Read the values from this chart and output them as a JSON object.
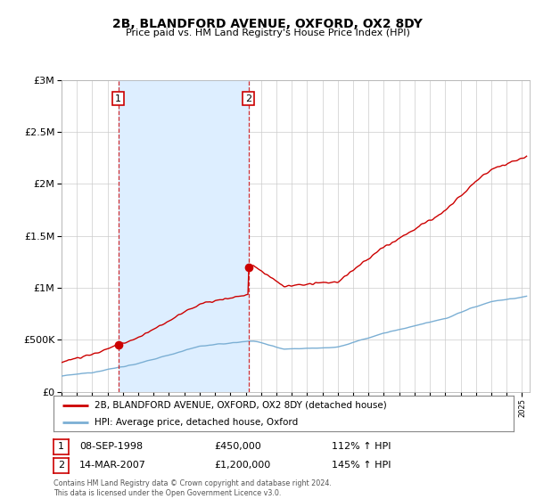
{
  "title": "2B, BLANDFORD AVENUE, OXFORD, OX2 8DY",
  "subtitle": "Price paid vs. HM Land Registry's House Price Index (HPI)",
  "legend_line1": "2B, BLANDFORD AVENUE, OXFORD, OX2 8DY (detached house)",
  "legend_line2": "HPI: Average price, detached house, Oxford",
  "annotation1_label": "1",
  "annotation1_date": "08-SEP-1998",
  "annotation1_price": "£450,000",
  "annotation1_hpi": "112% ↑ HPI",
  "annotation2_label": "2",
  "annotation2_date": "14-MAR-2007",
  "annotation2_price": "£1,200,000",
  "annotation2_hpi": "145% ↑ HPI",
  "footer": "Contains HM Land Registry data © Crown copyright and database right 2024.\nThis data is licensed under the Open Government Licence v3.0.",
  "red_color": "#cc0000",
  "blue_color": "#7bafd4",
  "shade_color": "#ddeeff",
  "background_color": "#ffffff",
  "grid_color": "#cccccc",
  "purchase1_x": 1998.69,
  "purchase1_y": 450000,
  "purchase2_x": 2007.19,
  "purchase2_y": 1200000,
  "ylim": [
    0,
    3000000
  ],
  "xlim": [
    1995.0,
    2025.5
  ]
}
